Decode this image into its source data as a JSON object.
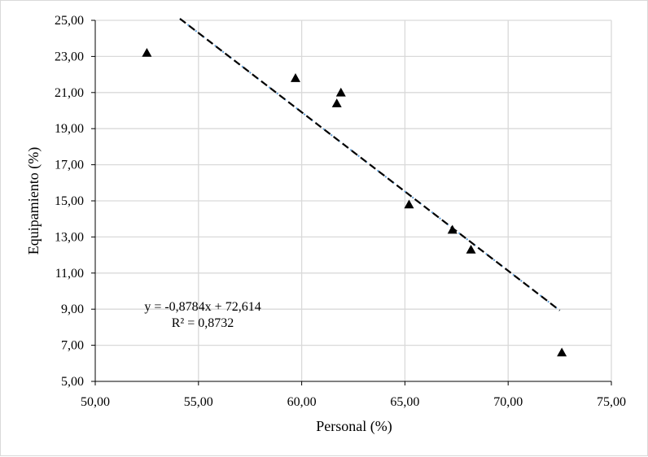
{
  "chart_data": {
    "type": "scatter",
    "xlabel": "Personal (%)",
    "ylabel": "Equipamiento (%)",
    "xlim": [
      50,
      75
    ],
    "ylim": [
      5,
      25
    ],
    "x_ticks": [
      "50,00",
      "55,00",
      "60,00",
      "65,00",
      "70,00",
      "75,00"
    ],
    "y_ticks": [
      "5,00",
      "7,00",
      "9,00",
      "11,00",
      "13,00",
      "15,00",
      "17,00",
      "19,00",
      "21,00",
      "23,00",
      "25,00"
    ],
    "grid": true,
    "marker": "triangle",
    "series": [
      {
        "points": [
          {
            "x": 52.5,
            "y": 23.2
          },
          {
            "x": 59.7,
            "y": 21.8
          },
          {
            "x": 61.9,
            "y": 21.0
          },
          {
            "x": 61.7,
            "y": 20.4
          },
          {
            "x": 65.2,
            "y": 14.8
          },
          {
            "x": 67.3,
            "y": 13.4
          },
          {
            "x": 68.2,
            "y": 12.3
          },
          {
            "x": 72.6,
            "y": 6.6
          }
        ]
      }
    ],
    "trendline": {
      "type": "linear",
      "slope": -0.8784,
      "intercept": 72.614,
      "x_range": [
        54.1,
        72.5
      ],
      "equation_text": "y = -0,8784x + 72,614",
      "r2_text": "R² = 0,8732"
    },
    "colors": {
      "marker": "#000000",
      "trend_dash": "#000000",
      "trend_dot": "#5b9bd5",
      "grid": "#d9d9d9",
      "axis": "#000000"
    }
  }
}
